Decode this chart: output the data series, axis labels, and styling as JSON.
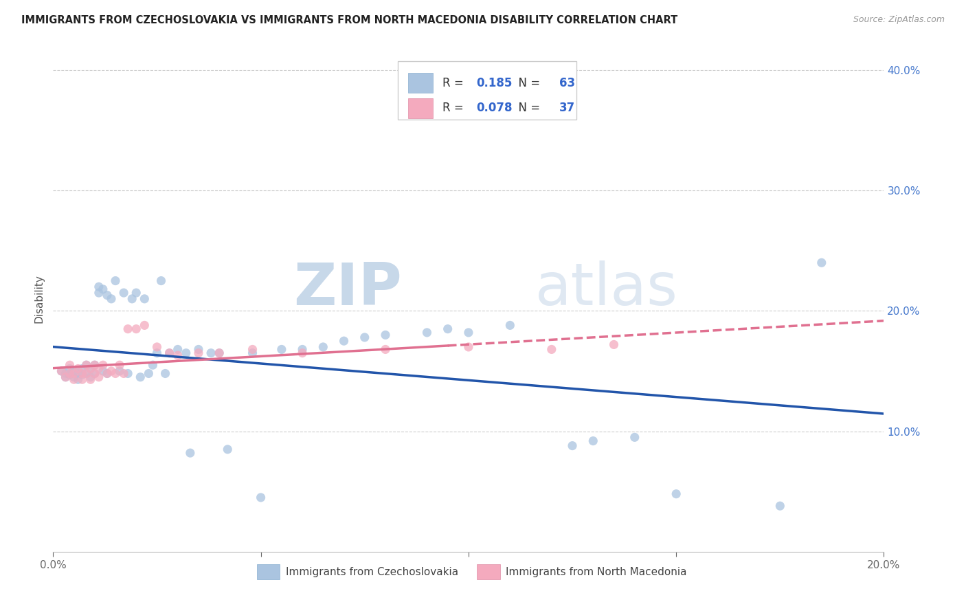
{
  "title": "IMMIGRANTS FROM CZECHOSLOVAKIA VS IMMIGRANTS FROM NORTH MACEDONIA DISABILITY CORRELATION CHART",
  "source": "Source: ZipAtlas.com",
  "ylabel": "Disability",
  "xlim": [
    0.0,
    0.2
  ],
  "ylim": [
    0.0,
    0.42
  ],
  "r_czech": 0.185,
  "n_czech": 63,
  "r_macedonia": 0.078,
  "n_macedonia": 37,
  "color_czech": "#aac4e0",
  "color_macedonia": "#f4aabe",
  "line_color_czech": "#2255aa",
  "line_color_macedonia": "#e07090",
  "watermark_zip": "ZIP",
  "watermark_atlas": "atlas",
  "czech_x": [
    0.002,
    0.003,
    0.003,
    0.004,
    0.004,
    0.005,
    0.005,
    0.006,
    0.006,
    0.007,
    0.007,
    0.008,
    0.008,
    0.009,
    0.009,
    0.01,
    0.01,
    0.011,
    0.011,
    0.012,
    0.012,
    0.013,
    0.013,
    0.014,
    0.015,
    0.016,
    0.017,
    0.018,
    0.019,
    0.02,
    0.021,
    0.022,
    0.023,
    0.024,
    0.025,
    0.026,
    0.027,
    0.028,
    0.03,
    0.032,
    0.033,
    0.035,
    0.038,
    0.04,
    0.042,
    0.048,
    0.05,
    0.055,
    0.06,
    0.065,
    0.07,
    0.075,
    0.08,
    0.09,
    0.095,
    0.1,
    0.11,
    0.125,
    0.13,
    0.14,
    0.15,
    0.175,
    0.185
  ],
  "czech_y": [
    0.15,
    0.148,
    0.145,
    0.152,
    0.147,
    0.15,
    0.145,
    0.148,
    0.143,
    0.152,
    0.147,
    0.155,
    0.148,
    0.152,
    0.145,
    0.155,
    0.148,
    0.22,
    0.215,
    0.218,
    0.15,
    0.213,
    0.148,
    0.21,
    0.225,
    0.15,
    0.215,
    0.148,
    0.21,
    0.215,
    0.145,
    0.21,
    0.148,
    0.155,
    0.165,
    0.225,
    0.148,
    0.165,
    0.168,
    0.165,
    0.082,
    0.168,
    0.165,
    0.165,
    0.085,
    0.165,
    0.045,
    0.168,
    0.168,
    0.17,
    0.175,
    0.178,
    0.18,
    0.182,
    0.185,
    0.182,
    0.188,
    0.088,
    0.092,
    0.095,
    0.048,
    0.038,
    0.24
  ],
  "mac_x": [
    0.002,
    0.003,
    0.004,
    0.004,
    0.005,
    0.005,
    0.006,
    0.007,
    0.007,
    0.008,
    0.008,
    0.009,
    0.009,
    0.01,
    0.01,
    0.011,
    0.011,
    0.012,
    0.013,
    0.014,
    0.015,
    0.016,
    0.017,
    0.018,
    0.02,
    0.022,
    0.025,
    0.028,
    0.03,
    0.035,
    0.04,
    0.048,
    0.06,
    0.08,
    0.1,
    0.12,
    0.135
  ],
  "mac_y": [
    0.15,
    0.145,
    0.148,
    0.155,
    0.148,
    0.143,
    0.152,
    0.148,
    0.143,
    0.155,
    0.148,
    0.152,
    0.143,
    0.155,
    0.148,
    0.152,
    0.145,
    0.155,
    0.148,
    0.15,
    0.148,
    0.155,
    0.148,
    0.185,
    0.185,
    0.188,
    0.17,
    0.165,
    0.163,
    0.165,
    0.165,
    0.168,
    0.165,
    0.168,
    0.17,
    0.168,
    0.172
  ]
}
